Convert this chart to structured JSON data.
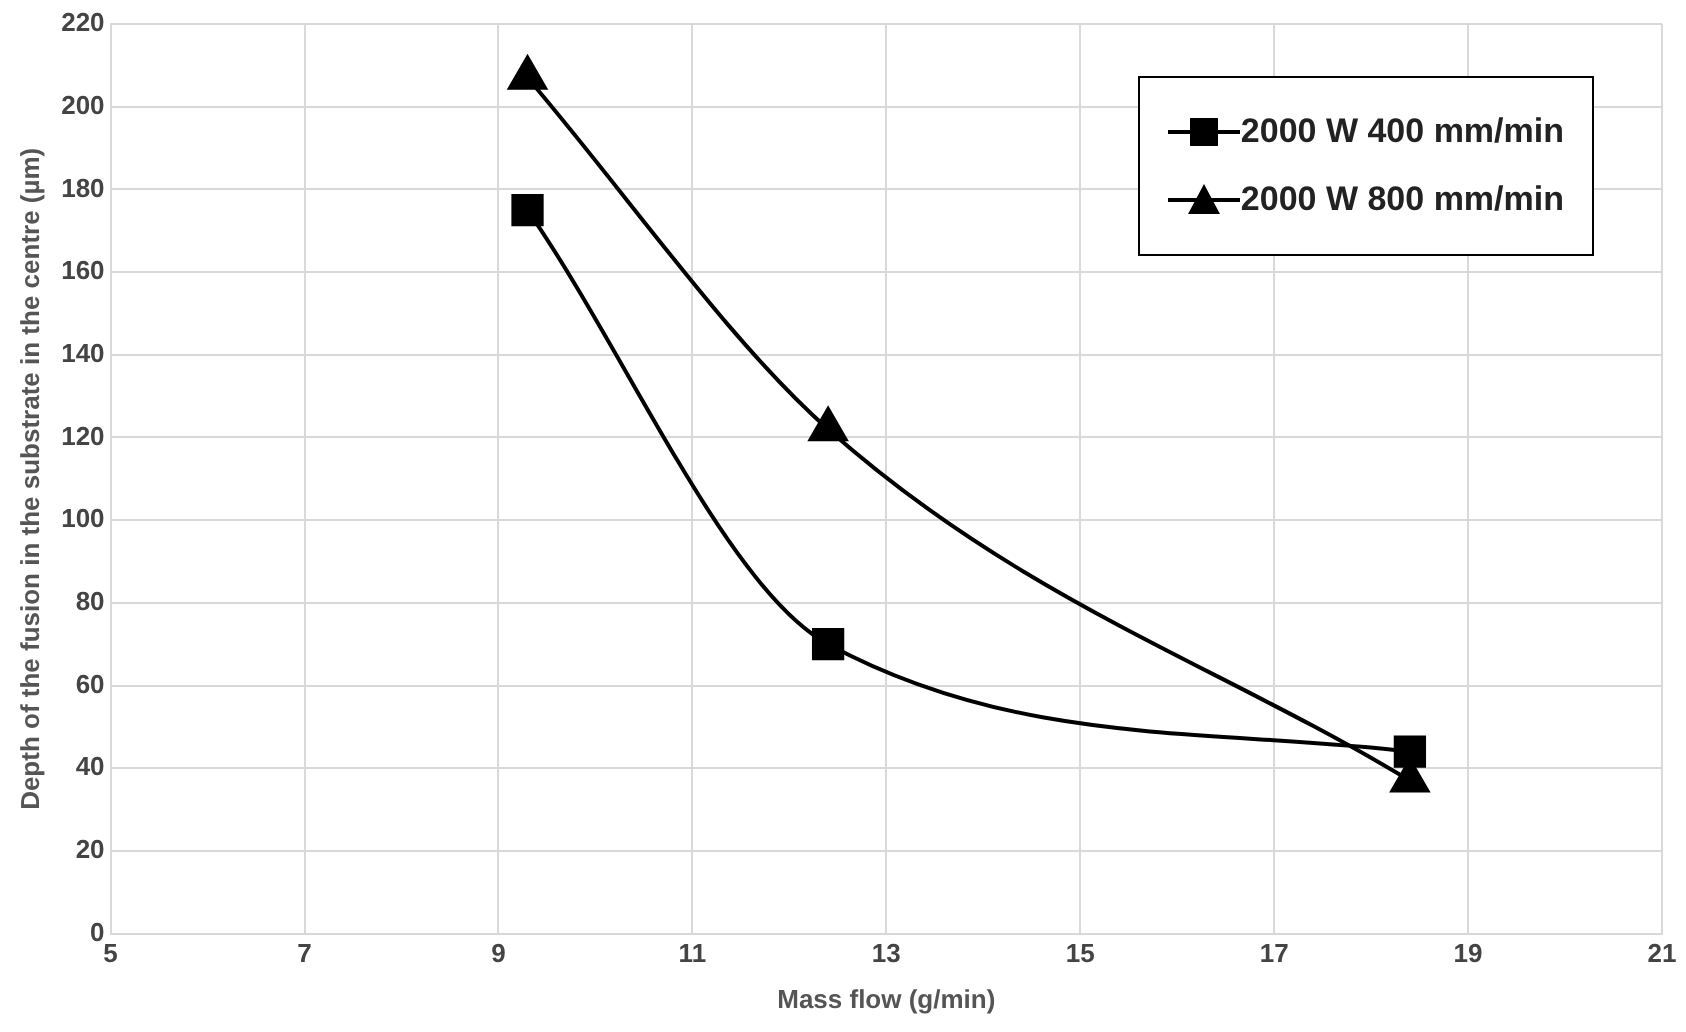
{
  "chart_data": {
    "type": "line",
    "xlabel": "Mass flow (g/min)",
    "ylabel": "Depth of the fusion in the substrate in the centre (µm)",
    "xlim": [
      5,
      21
    ],
    "xticks": [
      5,
      7,
      9,
      11,
      13,
      15,
      17,
      19,
      21
    ],
    "ylim": [
      0,
      220
    ],
    "yticks": [
      0,
      20,
      40,
      60,
      80,
      100,
      120,
      140,
      160,
      180,
      200,
      220
    ],
    "grid": true,
    "legend": "top right",
    "series": [
      {
        "name": "2000 W 400 mm/min",
        "color": "#000000",
        "marker": "square",
        "x": [
          9.3,
          12.4,
          18.4
        ],
        "values": [
          175,
          70,
          44
        ]
      },
      {
        "name": "2000 W 800 mm/min",
        "color": "#000000",
        "marker": "triangle",
        "x": [
          9.3,
          12.4,
          18.4
        ],
        "values": [
          207,
          122,
          37
        ]
      }
    ]
  }
}
